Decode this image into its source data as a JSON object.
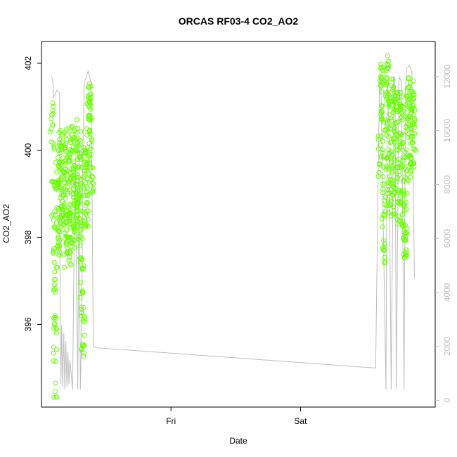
{
  "chart_data": {
    "type": "scatter",
    "title": "ORCAS RF03-4 CO2_AO2",
    "xlabel": "Date",
    "ylabel": "CO2_AO2",
    "x_range": [
      0.0,
      1.52
    ],
    "x_ticks": [
      {
        "value": 0.5,
        "label": "Fri"
      },
      {
        "value": 1.0,
        "label": "Sat"
      }
    ],
    "ylim": [
      394.1,
      402.5
    ],
    "y_ticks": [
      396,
      398,
      400,
      402
    ],
    "y2lim": [
      -250,
      13300
    ],
    "y2_ticks": [
      0,
      2000,
      4000,
      6000,
      8000,
      10000,
      12000
    ],
    "grid": false,
    "legend": "none",
    "colors": {
      "points": "#66ff00",
      "secondary_line": "#bebebe",
      "axis": "#000000",
      "axis_right": "#bebebe"
    },
    "series": [
      {
        "axis": "left",
        "style": "points",
        "segments": [
          {
            "x_start": 0.04,
            "x_end": 0.195,
            "values": [
              400.6,
              400.9,
              400.2,
              399.2,
              398.4,
              397.6,
              396.8,
              396.1,
              395.3,
              394.5,
              395.8,
              397.2,
              398.4,
              399.3,
              399.8,
              399.2,
              398.6,
              398.0,
              397.6,
              397.9,
              398.5,
              399.1,
              399.7,
              400.3,
              400.0,
              399.5,
              399.1,
              398.7,
              398.4,
              398.8,
              399.4,
              399.9,
              400.2,
              399.6,
              399.0,
              398.4,
              398.0,
              397.5,
              397.9,
              398.5,
              399.2,
              399.8,
              400.3,
              399.7,
              399.2,
              398.7,
              398.3,
              397.8,
              397.5,
              397.9,
              398.6,
              399.3,
              399.9,
              400.4,
              400.1,
              399.6,
              399.2,
              398.8,
              398.3,
              397.9,
              398.2,
              398.9,
              399.5,
              400.1,
              400.5,
              400.0,
              399.4,
              398.9,
              398.5,
              398.1,
              398.6,
              399.2,
              399.8,
              400.3,
              399.9,
              399.4,
              398.9,
              398.4,
              398.0,
              397.4,
              396.8,
              396.2,
              395.6,
              395.4,
              396.2,
              397.3,
              398.4,
              399.2,
              399.8,
              400.0,
              399.6,
              399.1,
              398.6,
              398.3,
              398.8,
              399.4,
              400.0,
              400.5,
              400.9,
              401.2,
              401.4,
              401.3,
              401.0,
              400.6,
              400.2,
              399.7,
              399.4,
              399.2
            ]
          },
          {
            "x_start": 1.305,
            "x_end": 1.44,
            "values": [
              399.5,
              400.2,
              400.9,
              401.5,
              401.9,
              401.6,
              400.8,
              400.0,
              399.2,
              398.4,
              397.6,
              397.9,
              398.8,
              399.7,
              400.5,
              401.2,
              401.7,
              402.0,
              401.8,
              401.2,
              400.5,
              399.8,
              399.2,
              398.7,
              398.9,
              399.5,
              400.1,
              400.7,
              401.3,
              401.6,
              401.1,
              400.4,
              399.7,
              399.1,
              398.6,
              399.0,
              399.7,
              400.4,
              401.0,
              401.4,
              401.0,
              400.5,
              400.0,
              399.4,
              398.9,
              398.5,
              399.0,
              399.6,
              400.2,
              400.8,
              401.2,
              400.9,
              400.3,
              399.7,
              399.2,
              398.8,
              398.4,
              398.1,
              397.8,
              397.6,
              398.1,
              398.8,
              399.4,
              400.0,
              400.5,
              400.9,
              401.2,
              401.5,
              401.3,
              400.9,
              400.4,
              399.9,
              399.5,
              399.8,
              400.3,
              400.8,
              401.2,
              401.4,
              401.1,
              400.7,
              400.2,
              399.8
            ]
          }
        ]
      },
      {
        "axis": "right",
        "style": "line",
        "x": [
          0.04,
          0.045,
          0.046,
          0.06,
          0.07,
          0.072,
          0.075,
          0.078,
          0.082,
          0.086,
          0.09,
          0.094,
          0.098,
          0.102,
          0.106,
          0.11,
          0.12,
          0.13,
          0.14,
          0.145,
          0.15,
          0.155,
          0.16,
          0.165,
          0.17,
          0.18,
          0.19,
          0.192,
          0.2,
          0.21,
          1.29,
          1.305,
          1.31,
          1.33,
          1.335,
          1.34,
          1.35,
          1.36,
          1.365,
          1.37,
          1.38,
          1.39,
          1.4,
          1.405,
          1.41,
          1.42,
          1.43,
          1.44
        ],
        "values": [
          12000,
          11700,
          11200,
          11500,
          11400,
          3000,
          600,
          2800,
          500,
          2500,
          400,
          2200,
          500,
          1800,
          600,
          1500,
          400,
          9000,
          400,
          9000,
          400,
          2500,
          9200,
          11800,
          11900,
          12200,
          11800,
          11500,
          2000,
          1950,
          1200,
          12000,
          12100,
          400,
          11800,
          11200,
          400,
          12000,
          11500,
          400,
          12000,
          11800,
          400,
          11500,
          12300,
          12400,
          12200,
          4500
        ]
      }
    ]
  }
}
